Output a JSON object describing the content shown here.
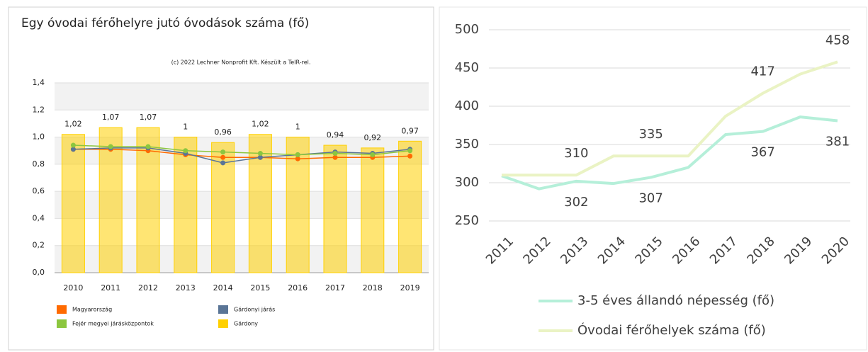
{
  "chart_data": [
    {
      "type": "combo",
      "title": "Egy óvodai férőhelyre jutó óvodások száma (fő)",
      "subtitle": "(c) 2022 Lechner Nonprofit Kft. Készült a TeIR-rel.",
      "categories": [
        "2010",
        "2011",
        "2012",
        "2013",
        "2014",
        "2015",
        "2016",
        "2017",
        "2018",
        "2019"
      ],
      "ylim": [
        0,
        1.4
      ],
      "yticks": [
        {
          "value": 0,
          "label": "0,0"
        },
        {
          "value": 0.2,
          "label": "0,2"
        },
        {
          "value": 0.4,
          "label": "0,4"
        },
        {
          "value": 0.6,
          "label": "0,6"
        },
        {
          "value": 0.8,
          "label": "0,8"
        },
        {
          "value": 1,
          "label": "1,0"
        },
        {
          "value": 1.2,
          "label": "1,2"
        },
        {
          "value": 1.4,
          "label": "1,4"
        }
      ],
      "series": [
        {
          "name": "Magyarország",
          "kind": "line",
          "color": "#ff6a00",
          "values": [
            0.91,
            0.91,
            0.9,
            0.87,
            0.85,
            0.85,
            0.84,
            0.85,
            0.85,
            0.86
          ]
        },
        {
          "name": "Gárdonyi járás",
          "kind": "line",
          "color": "#5a7596",
          "values": [
            0.91,
            0.92,
            0.92,
            0.88,
            0.81,
            0.85,
            0.87,
            0.89,
            0.88,
            0.91
          ]
        },
        {
          "name": "Fejér megyei járásközpontok",
          "kind": "line",
          "color": "#8cc63f",
          "values": [
            0.94,
            0.93,
            0.93,
            0.9,
            0.89,
            0.88,
            0.87,
            0.88,
            0.87,
            0.9
          ]
        },
        {
          "name": "Gárdony",
          "kind": "bar",
          "color": "#ffd000",
          "values": [
            1.02,
            1.07,
            1.07,
            1,
            0.96,
            1.02,
            1,
            0.94,
            0.92,
            0.97
          ],
          "value_labels": [
            "1,02",
            "1,07",
            "1,07",
            "1",
            "0,96",
            "1,02",
            "1",
            "0,94",
            "0,92",
            "0,97"
          ]
        }
      ]
    },
    {
      "type": "line",
      "categories": [
        "2011",
        "2012",
        "2013",
        "2014",
        "2015",
        "2016",
        "2017",
        "2018",
        "2019",
        "2020"
      ],
      "ylim": [
        250,
        500
      ],
      "yticks": [
        250,
        300,
        350,
        400,
        450,
        500
      ],
      "series": [
        {
          "name": "3-5 éves állandó népesség (fő)",
          "color": "#b5efd9",
          "values": [
            309,
            292,
            302,
            299,
            307,
            320,
            363,
            367,
            386,
            381
          ],
          "label_indices": [
            2,
            4,
            7,
            9
          ],
          "label_side": "below"
        },
        {
          "name": "Óvodai férőhelyek száma (fő)",
          "color": "#eaf3c4",
          "values": [
            310,
            310,
            310,
            335,
            335,
            335,
            387,
            417,
            442,
            458
          ],
          "label_indices": [
            2,
            4,
            7,
            9
          ],
          "label_side": "above"
        }
      ]
    }
  ]
}
